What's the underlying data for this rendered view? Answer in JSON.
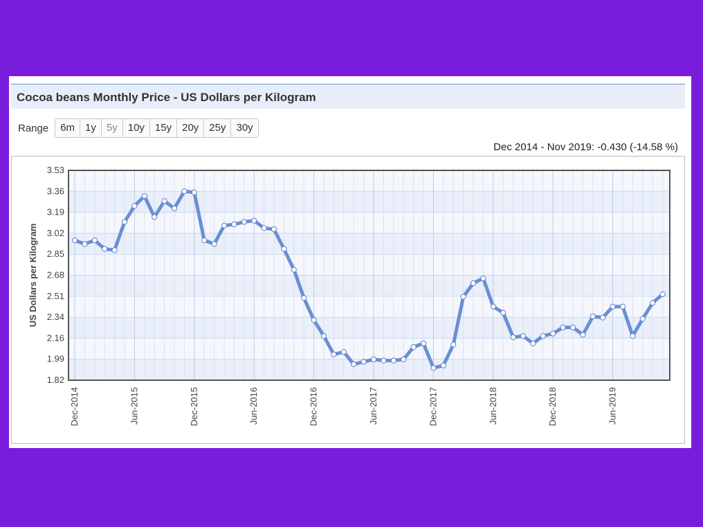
{
  "title": "Cocoa beans Monthly Price - US Dollars per Kilogram",
  "range": {
    "label": "Range",
    "buttons": [
      "6m",
      "1y",
      "5y",
      "10y",
      "15y",
      "20y",
      "25y",
      "30y"
    ],
    "active": "5y"
  },
  "change_summary": "Dec 2014 - Nov 2019: -0.430 (-14.58 %)",
  "chart_data": {
    "type": "line",
    "title": "",
    "xlabel": "",
    "ylabel": "US Dollars per Kilogram",
    "ylim": [
      1.82,
      3.53
    ],
    "yticks": [
      "3.53",
      "3.36",
      "3.19",
      "3.02",
      "2.85",
      "2.68",
      "2.51",
      "2.34",
      "2.16",
      "1.99",
      "1.82"
    ],
    "xtick_labels": [
      "Dec-2014",
      "Jun-2015",
      "Dec-2015",
      "Jun-2016",
      "Dec-2016",
      "Jun-2017",
      "Dec-2017",
      "Jun-2018",
      "Dec-2018",
      "Jun-2019"
    ],
    "grid": true,
    "legend": "none",
    "line_color": "#6a8fd4",
    "x": [
      "Dec-2014",
      "Jan-2015",
      "Feb-2015",
      "Mar-2015",
      "Apr-2015",
      "May-2015",
      "Jun-2015",
      "Jul-2015",
      "Aug-2015",
      "Sep-2015",
      "Oct-2015",
      "Nov-2015",
      "Dec-2015",
      "Jan-2016",
      "Feb-2016",
      "Mar-2016",
      "Apr-2016",
      "May-2016",
      "Jun-2016",
      "Jul-2016",
      "Aug-2016",
      "Sep-2016",
      "Oct-2016",
      "Nov-2016",
      "Dec-2016",
      "Jan-2017",
      "Feb-2017",
      "Mar-2017",
      "Apr-2017",
      "May-2017",
      "Jun-2017",
      "Jul-2017",
      "Aug-2017",
      "Sep-2017",
      "Oct-2017",
      "Nov-2017",
      "Dec-2017",
      "Jan-2018",
      "Feb-2018",
      "Mar-2018",
      "Apr-2018",
      "May-2018",
      "Jun-2018",
      "Jul-2018",
      "Aug-2018",
      "Sep-2018",
      "Oct-2018",
      "Nov-2018",
      "Dec-2018",
      "Jan-2019",
      "Feb-2019",
      "Mar-2019",
      "Apr-2019",
      "May-2019",
      "Jun-2019",
      "Jul-2019",
      "Aug-2019",
      "Sep-2019",
      "Oct-2019",
      "Nov-2019"
    ],
    "series": [
      {
        "values": [
          2.96,
          2.93,
          2.96,
          2.89,
          2.88,
          3.11,
          3.24,
          3.32,
          3.15,
          3.28,
          3.22,
          3.36,
          3.35,
          2.96,
          2.93,
          3.08,
          3.09,
          3.11,
          3.12,
          3.06,
          3.05,
          2.89,
          2.72,
          2.49,
          2.31,
          2.18,
          2.03,
          2.05,
          1.95,
          1.97,
          1.99,
          1.98,
          1.98,
          1.99,
          2.09,
          2.12,
          1.92,
          1.94,
          2.11,
          2.5,
          2.61,
          2.65,
          2.42,
          2.37,
          2.17,
          2.18,
          2.12,
          2.18,
          2.2,
          2.25,
          2.25,
          2.19,
          2.34,
          2.33,
          2.42,
          2.42,
          2.18,
          2.32,
          2.45,
          2.52
        ]
      }
    ]
  }
}
